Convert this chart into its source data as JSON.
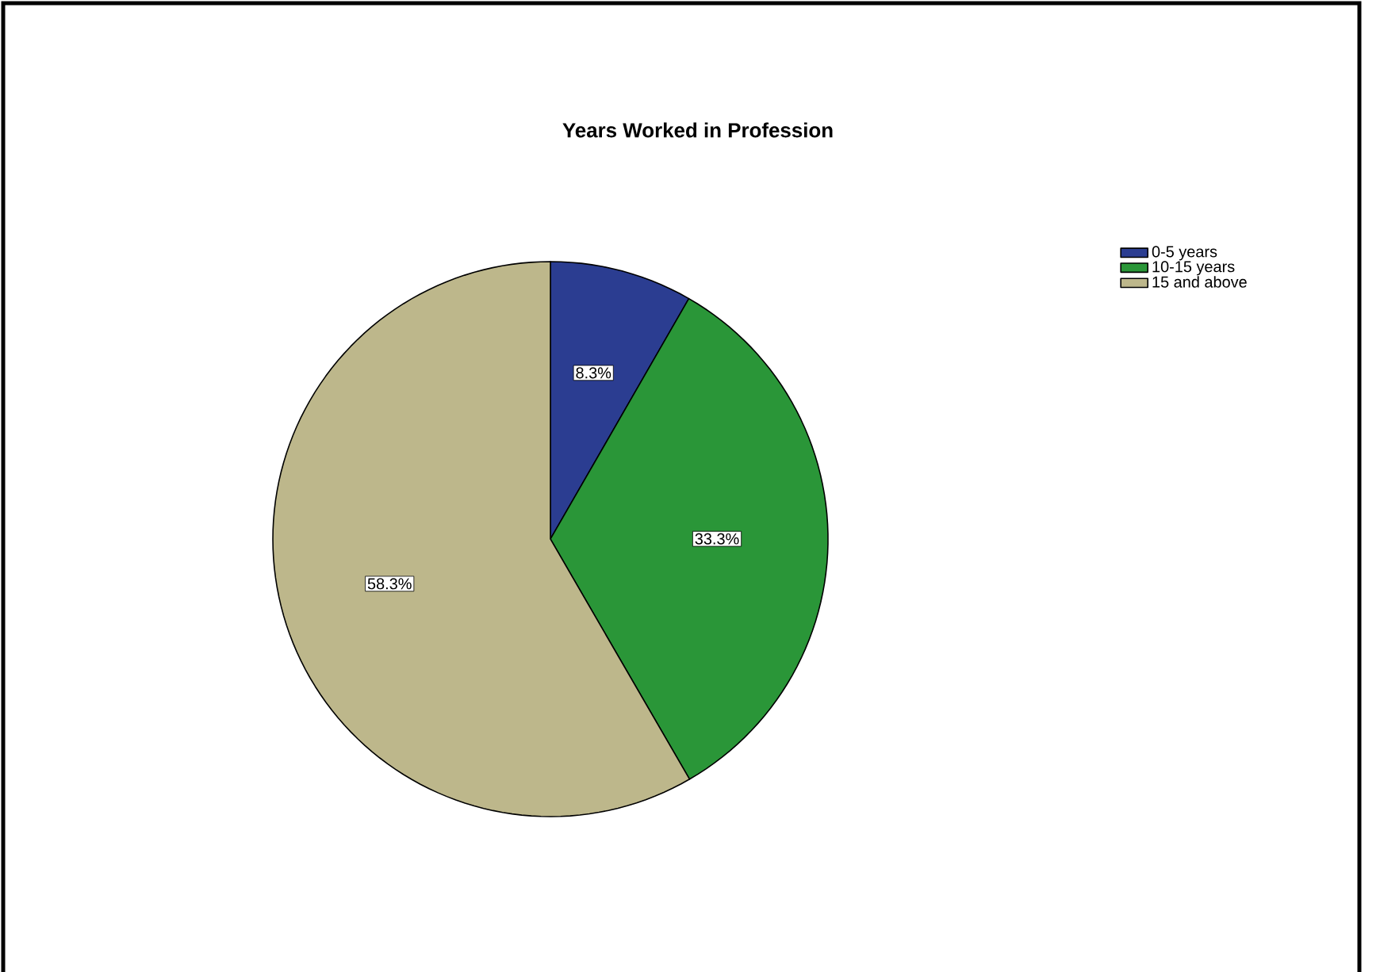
{
  "chart_data": {
    "type": "pie",
    "title": "Years Worked in Profession",
    "categories": [
      "0-5 years",
      "10-15 years",
      "15 and above"
    ],
    "values": [
      8.3,
      33.3,
      58.3
    ],
    "colors": [
      "#2b3d91",
      "#2a9638",
      "#bdb78b"
    ],
    "value_labels": [
      "8.3%",
      "33.3%",
      "58.3%"
    ],
    "legend": "top right"
  }
}
